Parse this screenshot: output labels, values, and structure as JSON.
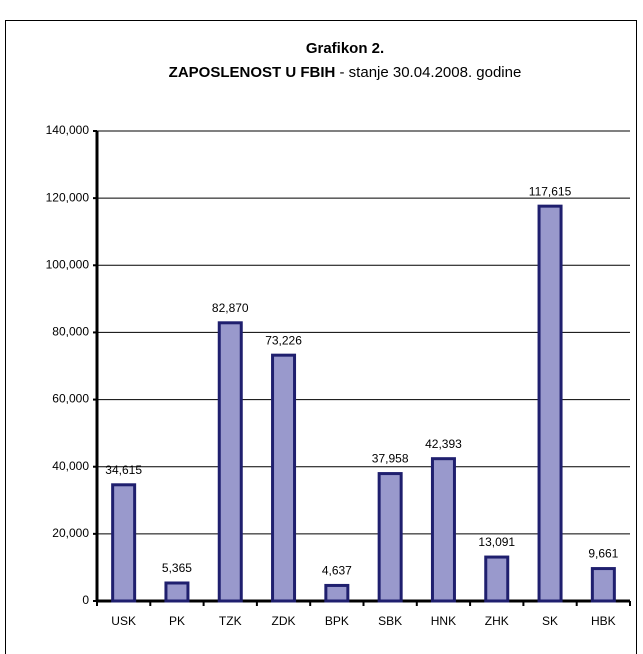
{
  "chart_data": {
    "type": "bar",
    "title": "Grafikon 2.",
    "subtitle_bold": "ZAPOSLENOST U FBIH",
    "subtitle": "- stanje 30.04.2008. godine",
    "categories": [
      "USK",
      "PK",
      "TZK",
      "ZDK",
      "BPK",
      "SBK",
      "HNK",
      "ZHK",
      "SK",
      "HBK"
    ],
    "values": [
      34615,
      5365,
      82870,
      73226,
      4637,
      37958,
      42393,
      13091,
      117615,
      9661
    ],
    "value_labels": [
      "34,615",
      "5,365",
      "82,870",
      "73,226",
      "4,637",
      "37,958",
      "42,393",
      "13,091",
      "117,615",
      "9,661"
    ],
    "color": "#9999cc",
    "ylim": [
      0,
      140000
    ],
    "yticks": [
      0,
      {
        "value": 20000,
        "label": "20,000"
      },
      {
        "value": 40000,
        "label": "40,000"
      },
      {
        "value": 60000,
        "label": "60,000"
      },
      {
        "value": 80000,
        "label": "80,000"
      },
      {
        "value": 100000,
        "label": "100,000"
      },
      {
        "value": 120000,
        "label": "120,000"
      },
      {
        "value": 140000,
        "label": "140,000"
      }
    ],
    "grid": true
  }
}
